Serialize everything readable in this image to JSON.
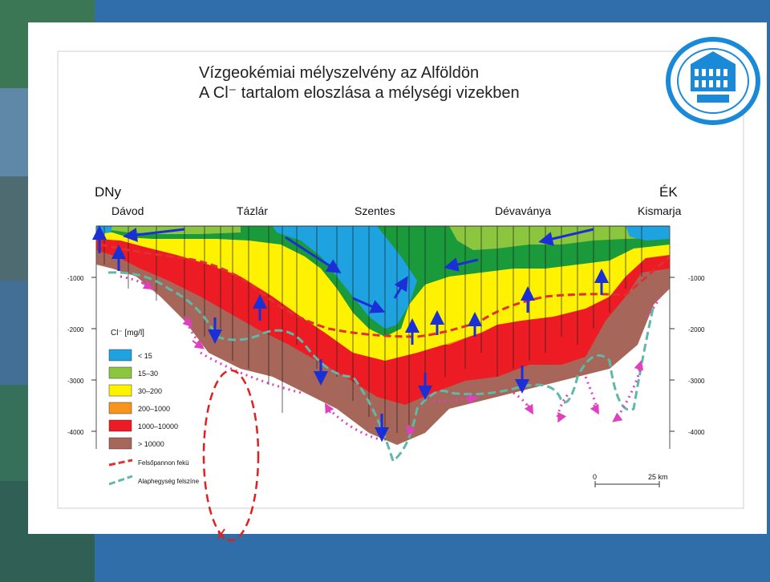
{
  "title": {
    "line1": "Vízgeokémiai mélyszelvény az Alföldön",
    "line2": "A Cl⁻ tartalom eloszlása a mélységi vizekben"
  },
  "directions": {
    "left": "DNy",
    "right": "ÉK"
  },
  "towns": [
    "Dávod",
    "Tázlár",
    "Szentes",
    "Dévaványa",
    "Kismarja"
  ],
  "depth_ticks": [
    "-1000",
    "-2000",
    "-3000",
    "-4000"
  ],
  "legend": {
    "title": "Cl⁻ [mg/l]",
    "classes": [
      {
        "label": "< 15",
        "color": "#1ea3e0"
      },
      {
        "label": "15–30",
        "color": "#8cc63e"
      },
      {
        "label": "30–200",
        "color": "#fff200"
      },
      {
        "label": "200–1000",
        "color": "#f7941d"
      },
      {
        "label": "1000–10000",
        "color": "#ed1c24"
      },
      {
        "label": "> 10000",
        "color": "#a7665a"
      }
    ],
    "lines": [
      {
        "label": "Felsőpannon fekü",
        "color": "#e03030"
      },
      {
        "label": "Alaphegység felszíne",
        "color": "#5fb8a8"
      }
    ]
  },
  "scale": {
    "start": "0",
    "end": "25 km"
  },
  "colors": {
    "background": "#2f6ea8",
    "green_zone": "#1a9a3a",
    "arrow_blue": "#1a2fd6",
    "dotted_magenta": "#e040c0"
  }
}
